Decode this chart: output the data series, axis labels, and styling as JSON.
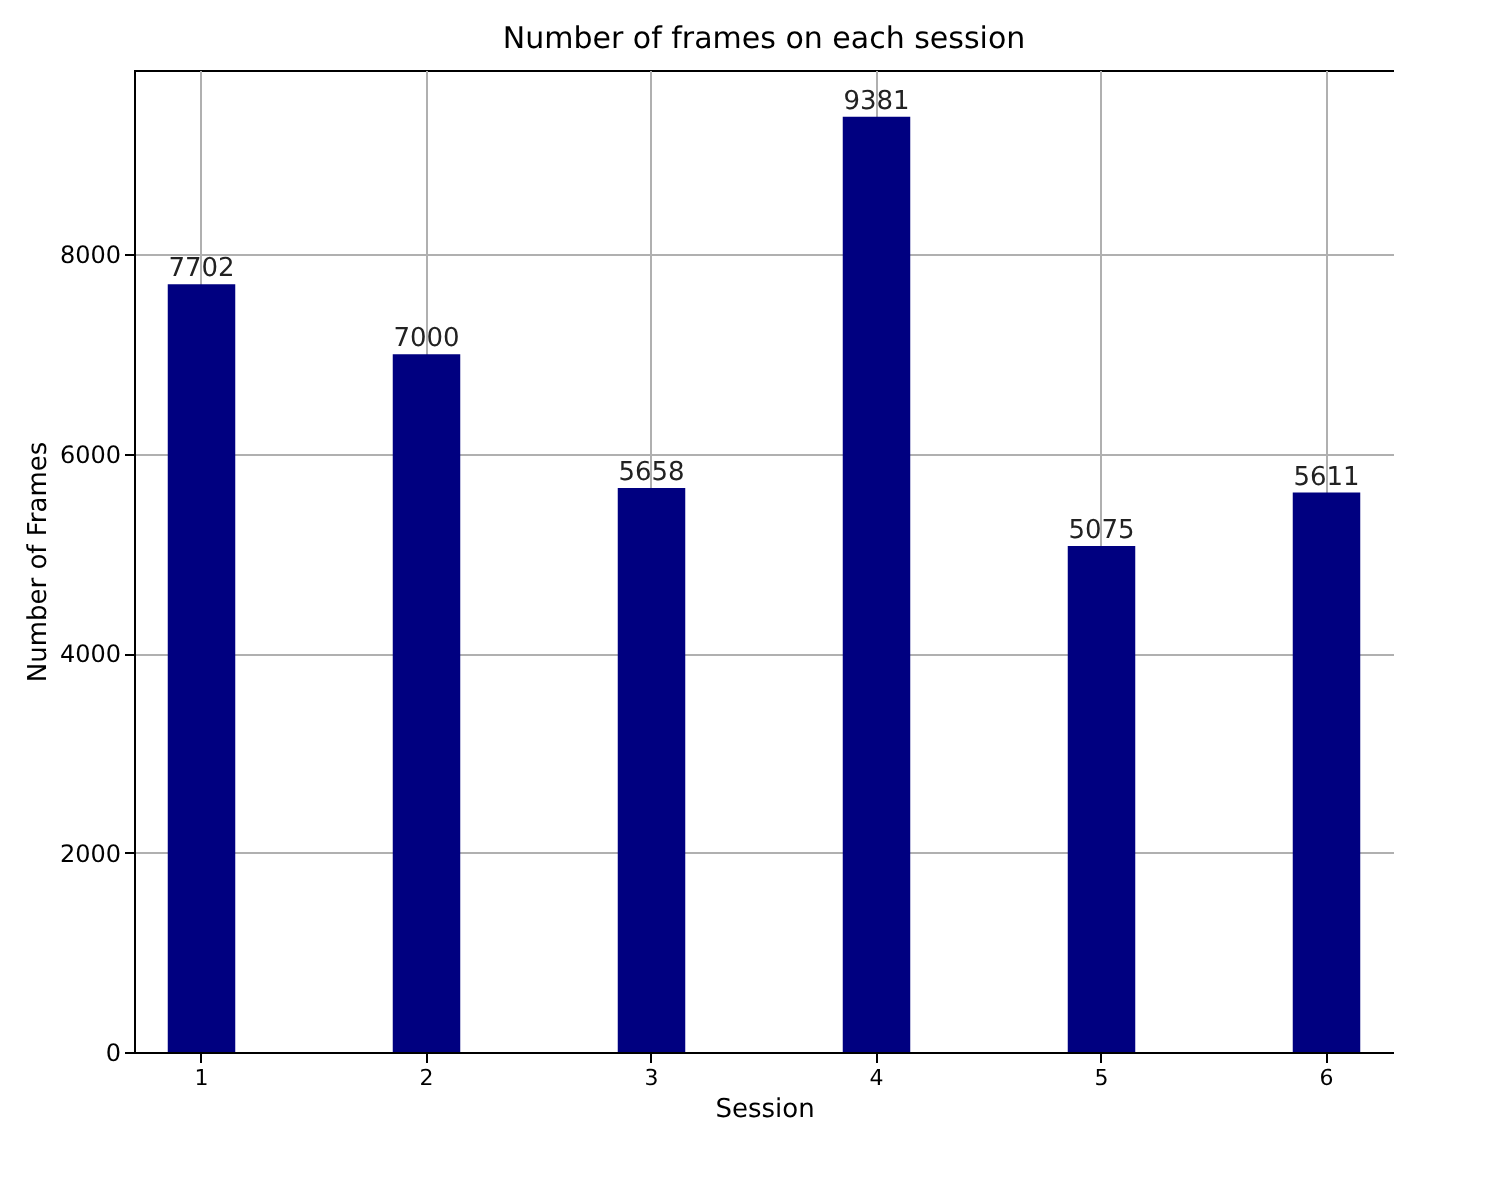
{
  "chart_data": {
    "type": "bar",
    "title": "Number of frames on each session",
    "xlabel": "Session",
    "ylabel": "Number of Frames",
    "categories": [
      "1",
      "2",
      "3",
      "4",
      "5",
      "6"
    ],
    "values": [
      7702,
      7000,
      5658,
      9381,
      5075,
      5611
    ],
    "color": "#000080",
    "ylim": [
      0,
      9850
    ],
    "yticks": [
      0,
      2000,
      4000,
      6000,
      8000
    ],
    "grid": true,
    "data_labels": true
  }
}
